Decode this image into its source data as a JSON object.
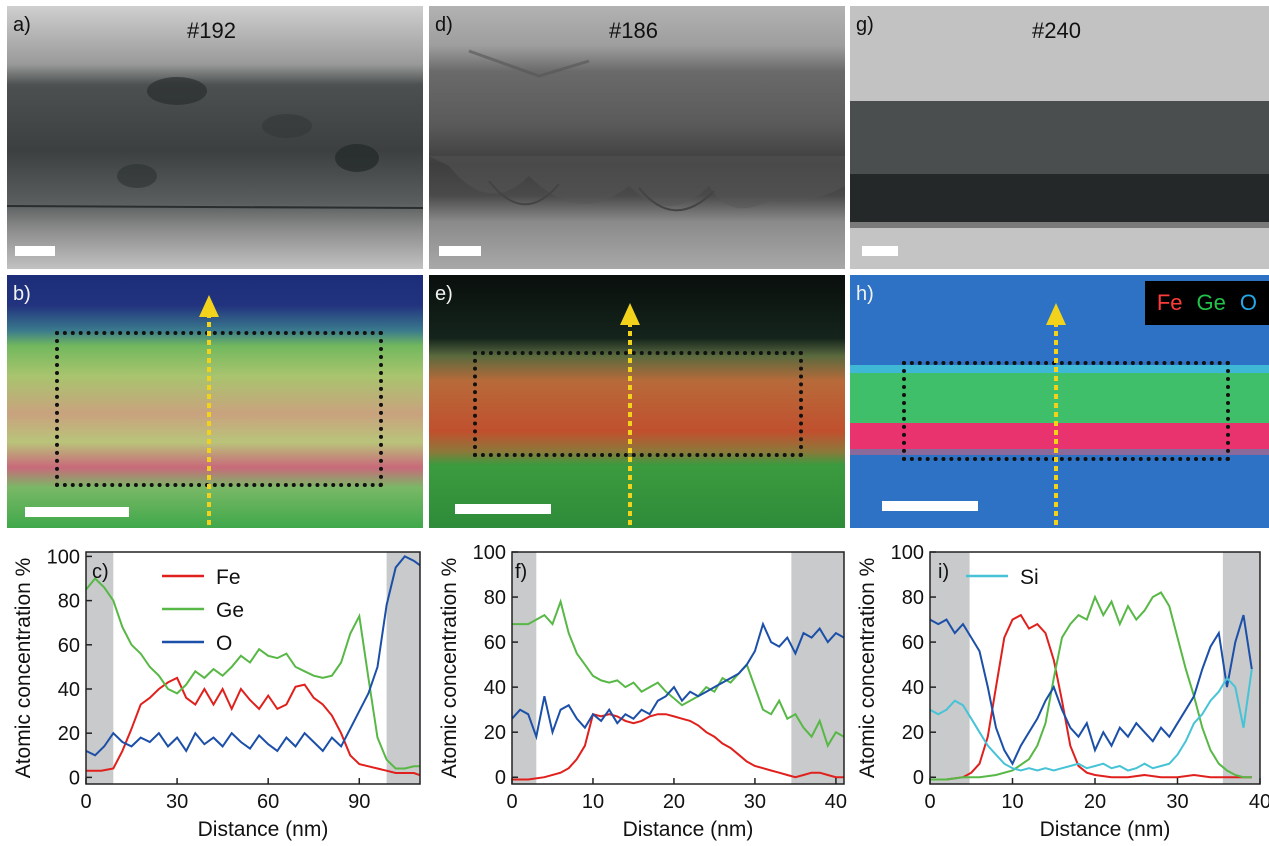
{
  "panels": {
    "a": {
      "label": "a)",
      "sample": "#192"
    },
    "b": {
      "label": "b)"
    },
    "c": {
      "label": "c)"
    },
    "d": {
      "label": "d)",
      "sample": "#186"
    },
    "e": {
      "label": "e)"
    },
    "f": {
      "label": "f)"
    },
    "g": {
      "label": "g)",
      "sample": "#240"
    },
    "h": {
      "label": "h)"
    },
    "i": {
      "label": "i)"
    }
  },
  "map_legend": [
    {
      "text": "Fe",
      "color": "#ff3b3b"
    },
    {
      "text": "Ge",
      "color": "#22c34a"
    },
    {
      "text": "O",
      "color": "#22a8e8"
    }
  ],
  "colors": {
    "Fe": "#e0201c",
    "Ge": "#58b846",
    "O": "#1b4fa8",
    "Si": "#46c3d6",
    "shade": "#c8cacc",
    "arrow": "#f2d21b"
  },
  "chart_data": [
    {
      "type": "line",
      "panel": "c",
      "xlabel": "Distance (nm)",
      "ylabel": "Atomic concentration %",
      "xlim": [
        0,
        110
      ],
      "ylim": [
        -3,
        102
      ],
      "xticks": [
        0,
        30,
        60,
        90
      ],
      "yticks": [
        0,
        20,
        40,
        60,
        80,
        100
      ],
      "shaded": [
        [
          0,
          9
        ],
        [
          99,
          110
        ]
      ],
      "legend": [
        "Fe",
        "Ge",
        "O"
      ],
      "series": [
        {
          "name": "Fe",
          "x": [
            0,
            5,
            9,
            12,
            15,
            18,
            21,
            24,
            27,
            30,
            33,
            36,
            39,
            42,
            45,
            48,
            51,
            54,
            57,
            60,
            63,
            66,
            69,
            72,
            75,
            78,
            81,
            84,
            87,
            90,
            93,
            96,
            99,
            102,
            105,
            108,
            110
          ],
          "y": [
            3,
            3,
            4,
            12,
            22,
            33,
            36,
            40,
            43,
            45,
            36,
            33,
            40,
            33,
            40,
            31,
            40,
            35,
            31,
            37,
            31,
            33,
            41,
            42,
            36,
            33,
            28,
            20,
            10,
            6,
            5,
            4,
            3,
            2,
            2,
            2,
            1
          ]
        },
        {
          "name": "Ge",
          "x": [
            0,
            3,
            6,
            9,
            12,
            15,
            18,
            21,
            24,
            27,
            30,
            33,
            36,
            39,
            42,
            45,
            48,
            51,
            54,
            57,
            60,
            63,
            66,
            69,
            72,
            75,
            78,
            81,
            84,
            87,
            90,
            93,
            96,
            99,
            102,
            105,
            108,
            110
          ],
          "y": [
            85,
            90,
            86,
            80,
            68,
            60,
            56,
            50,
            46,
            40,
            38,
            42,
            48,
            45,
            49,
            46,
            50,
            55,
            52,
            58,
            55,
            54,
            56,
            50,
            48,
            46,
            45,
            46,
            52,
            65,
            73,
            45,
            18,
            8,
            4,
            4,
            5,
            5
          ]
        },
        {
          "name": "O",
          "x": [
            0,
            3,
            6,
            9,
            12,
            15,
            18,
            21,
            24,
            27,
            30,
            33,
            36,
            39,
            42,
            45,
            48,
            51,
            54,
            57,
            60,
            63,
            66,
            69,
            72,
            75,
            78,
            81,
            84,
            87,
            90,
            93,
            96,
            99,
            102,
            105,
            108,
            110
          ],
          "y": [
            12,
            10,
            14,
            20,
            16,
            14,
            18,
            16,
            20,
            14,
            18,
            12,
            20,
            15,
            18,
            14,
            20,
            16,
            13,
            19,
            15,
            12,
            18,
            14,
            20,
            16,
            12,
            18,
            14,
            22,
            30,
            38,
            50,
            78,
            95,
            100,
            98,
            96
          ]
        }
      ]
    },
    {
      "type": "line",
      "panel": "f",
      "xlabel": "Distance (nm)",
      "ylabel": "Atomic concentration %",
      "xlim": [
        0,
        41
      ],
      "ylim": [
        -3,
        100
      ],
      "xticks": [
        0,
        10,
        20,
        30,
        40
      ],
      "yticks": [
        0,
        20,
        40,
        60,
        80,
        100
      ],
      "shaded": [
        [
          0,
          3
        ],
        [
          34.5,
          41
        ]
      ],
      "series": [
        {
          "name": "Fe",
          "x": [
            0,
            2,
            4,
            6,
            7,
            8,
            9,
            10,
            11,
            12,
            13,
            14,
            15,
            16,
            17,
            18,
            19,
            20,
            21,
            22,
            23,
            24,
            25,
            26,
            27,
            28,
            29,
            30,
            31,
            32,
            33,
            34,
            35,
            36,
            37,
            38,
            39,
            40,
            41
          ],
          "y": [
            -1,
            -1,
            0,
            2,
            4,
            8,
            14,
            28,
            27,
            28,
            27,
            25,
            24,
            25,
            27,
            28,
            28,
            27,
            26,
            25,
            23,
            20,
            18,
            15,
            13,
            10,
            7,
            5,
            4,
            3,
            2,
            1,
            0,
            1,
            2,
            2,
            1,
            0,
            0
          ]
        },
        {
          "name": "Ge",
          "x": [
            0,
            2,
            4,
            5,
            6,
            7,
            8,
            9,
            10,
            11,
            12,
            13,
            14,
            15,
            16,
            17,
            18,
            19,
            20,
            21,
            22,
            23,
            24,
            25,
            26,
            27,
            28,
            29,
            30,
            31,
            32,
            33,
            34,
            35,
            36,
            37,
            38,
            39,
            40,
            41
          ],
          "y": [
            68,
            68,
            72,
            68,
            78,
            64,
            55,
            50,
            45,
            43,
            42,
            43,
            40,
            42,
            38,
            40,
            42,
            38,
            35,
            32,
            34,
            36,
            40,
            38,
            44,
            42,
            46,
            50,
            40,
            30,
            28,
            34,
            26,
            28,
            22,
            18,
            25,
            14,
            20,
            18
          ]
        },
        {
          "name": "O",
          "x": [
            0,
            1,
            2,
            3,
            4,
            5,
            6,
            7,
            8,
            9,
            10,
            11,
            12,
            13,
            14,
            15,
            16,
            17,
            18,
            19,
            20,
            21,
            22,
            23,
            24,
            25,
            26,
            27,
            28,
            29,
            30,
            31,
            32,
            33,
            34,
            35,
            36,
            37,
            38,
            39,
            40,
            41
          ],
          "y": [
            26,
            30,
            28,
            18,
            36,
            20,
            30,
            32,
            26,
            22,
            28,
            25,
            30,
            24,
            28,
            26,
            30,
            28,
            34,
            36,
            40,
            34,
            38,
            36,
            38,
            40,
            42,
            44,
            46,
            50,
            56,
            68,
            60,
            58,
            62,
            55,
            64,
            62,
            66,
            60,
            64,
            62
          ]
        }
      ]
    },
    {
      "type": "line",
      "panel": "i",
      "xlabel": "Distance (nm)",
      "ylabel": "Atomic concentration %",
      "xlim": [
        0,
        40
      ],
      "ylim": [
        -3,
        100
      ],
      "xticks": [
        0,
        10,
        20,
        30,
        40
      ],
      "yticks": [
        0,
        20,
        40,
        60,
        80,
        100
      ],
      "shaded": [
        [
          0,
          4.8
        ],
        [
          35.5,
          40
        ]
      ],
      "legend": [
        "Si"
      ],
      "series": [
        {
          "name": "Fe",
          "x": [
            0,
            2,
            4,
            5,
            6,
            7,
            8,
            9,
            10,
            11,
            12,
            13,
            14,
            15,
            16,
            17,
            18,
            19,
            20,
            22,
            24,
            26,
            28,
            30,
            32,
            34,
            36,
            38,
            39
          ],
          "y": [
            -1,
            -1,
            0,
            2,
            6,
            18,
            40,
            62,
            70,
            72,
            66,
            68,
            64,
            52,
            34,
            14,
            5,
            2,
            1,
            0,
            0,
            1,
            0,
            0,
            1,
            0,
            0,
            0,
            0
          ]
        },
        {
          "name": "Ge",
          "x": [
            0,
            2,
            4,
            6,
            8,
            10,
            12,
            13,
            14,
            15,
            16,
            17,
            18,
            19,
            20,
            21,
            22,
            23,
            24,
            25,
            26,
            27,
            28,
            29,
            30,
            31,
            32,
            33,
            34,
            35,
            36,
            37,
            38,
            39
          ],
          "y": [
            -1,
            -1,
            0,
            0,
            1,
            3,
            8,
            14,
            24,
            44,
            62,
            68,
            72,
            70,
            80,
            72,
            78,
            68,
            76,
            70,
            74,
            80,
            82,
            76,
            62,
            48,
            36,
            22,
            12,
            6,
            3,
            1,
            0,
            0
          ]
        },
        {
          "name": "O",
          "x": [
            0,
            1,
            2,
            3,
            4,
            5,
            6,
            7,
            8,
            9,
            10,
            11,
            12,
            13,
            14,
            15,
            16,
            17,
            18,
            19,
            20,
            21,
            22,
            23,
            24,
            25,
            26,
            27,
            28,
            29,
            30,
            31,
            32,
            33,
            34,
            35,
            36,
            37,
            38,
            39
          ],
          "y": [
            70,
            68,
            70,
            64,
            68,
            62,
            56,
            40,
            22,
            12,
            6,
            14,
            20,
            26,
            34,
            40,
            30,
            22,
            18,
            24,
            12,
            20,
            14,
            22,
            18,
            24,
            20,
            16,
            22,
            18,
            24,
            30,
            36,
            48,
            58,
            64,
            40,
            60,
            72,
            48
          ]
        },
        {
          "name": "Si",
          "x": [
            0,
            1,
            2,
            3,
            4,
            5,
            6,
            7,
            8,
            9,
            10,
            11,
            12,
            13,
            14,
            15,
            16,
            17,
            18,
            19,
            20,
            21,
            22,
            23,
            24,
            25,
            26,
            27,
            28,
            29,
            30,
            31,
            32,
            33,
            34,
            35,
            36,
            37,
            38,
            39
          ],
          "y": [
            30,
            28,
            30,
            34,
            32,
            26,
            20,
            14,
            10,
            6,
            4,
            3,
            4,
            3,
            4,
            3,
            4,
            5,
            6,
            4,
            5,
            6,
            4,
            5,
            3,
            4,
            6,
            4,
            5,
            6,
            10,
            16,
            24,
            28,
            34,
            38,
            44,
            40,
            22,
            48
          ]
        }
      ]
    }
  ]
}
